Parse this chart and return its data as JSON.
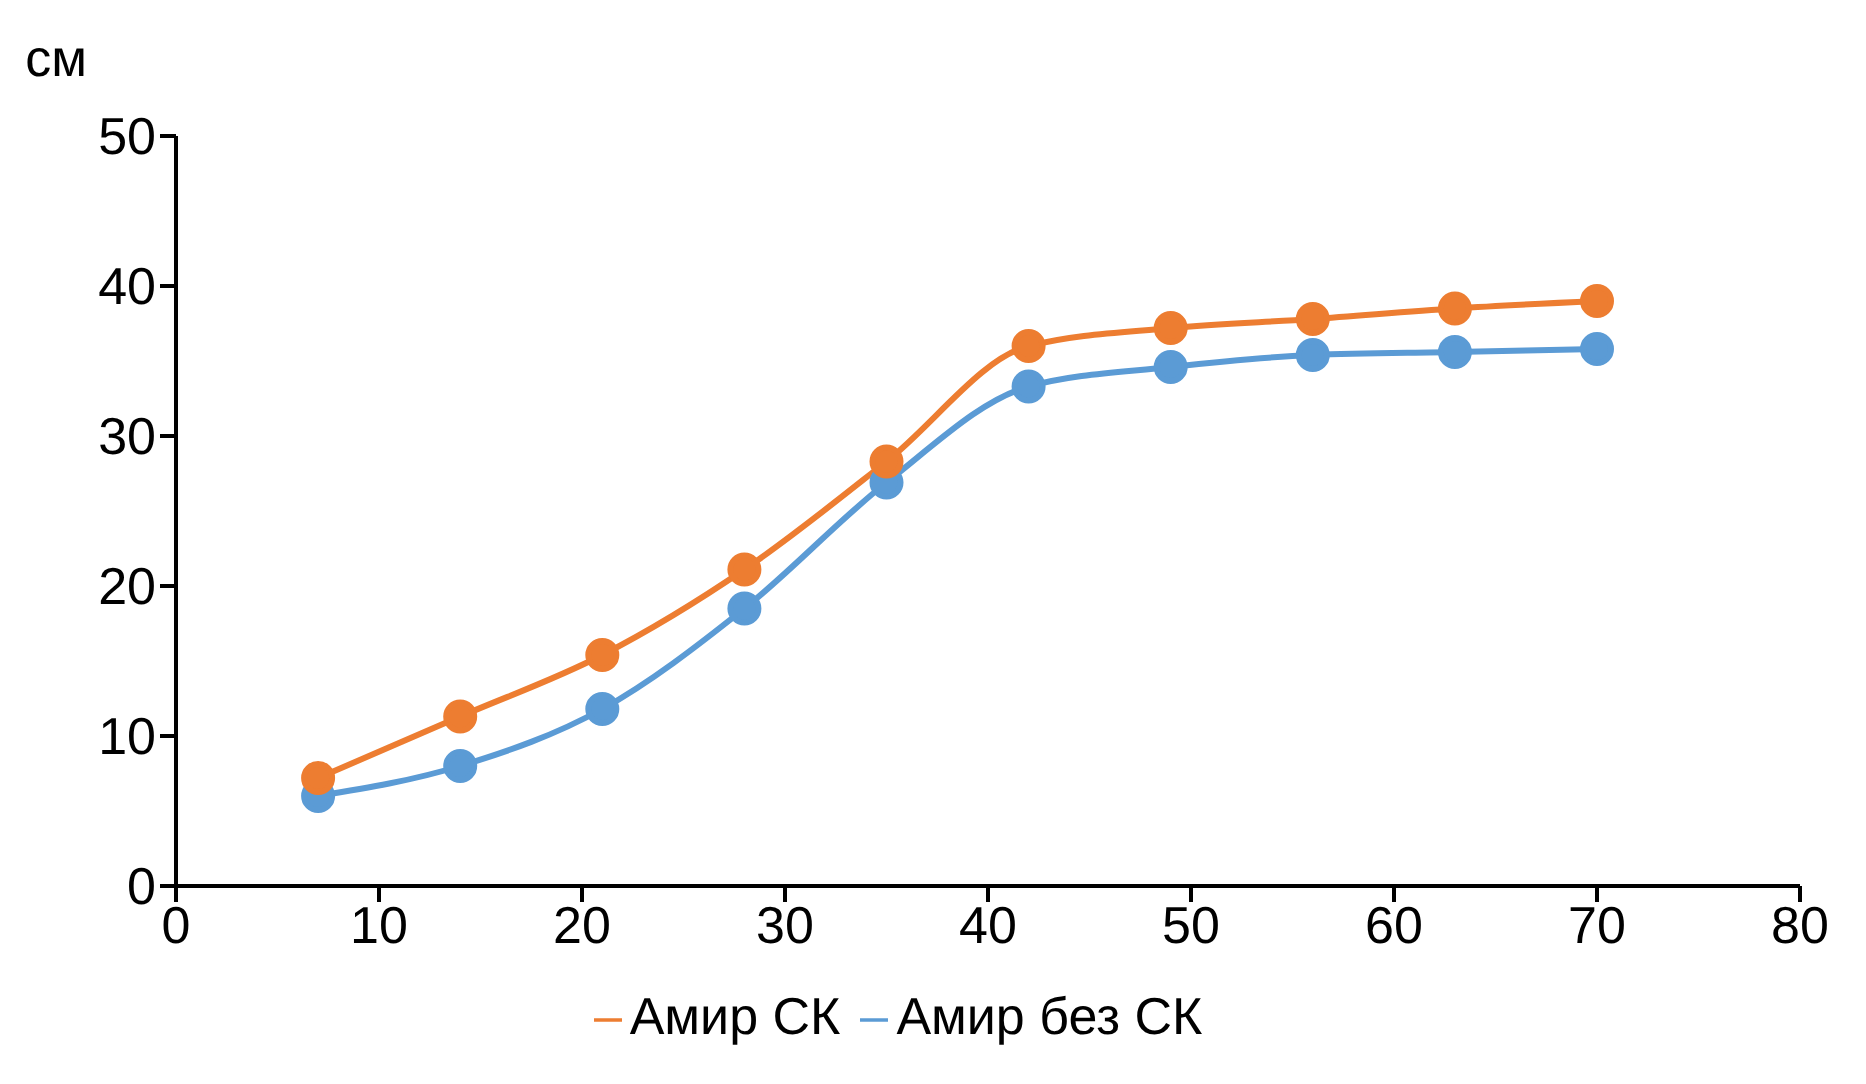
{
  "chart_data": {
    "type": "line",
    "ylabel": "см",
    "x": [
      7,
      14,
      21,
      28,
      35,
      42,
      49,
      56,
      63,
      70
    ],
    "series": [
      {
        "name": "Амир без СК",
        "color": "#5b9bd5",
        "values": [
          6.0,
          8.0,
          11.8,
          18.5,
          26.9,
          33.3,
          34.6,
          35.4,
          35.6,
          35.8
        ]
      },
      {
        "name": "Амир СК",
        "color": "#ed7d31",
        "values": [
          7.2,
          11.3,
          15.4,
          21.1,
          28.3,
          36.0,
          37.2,
          37.8,
          38.5,
          39.0
        ]
      }
    ],
    "xlim": [
      0,
      80
    ],
    "xticks": [
      0,
      10,
      20,
      30,
      40,
      50,
      60,
      70,
      80
    ],
    "ylim": [
      0,
      50
    ],
    "yticks": [
      0,
      10,
      20,
      30,
      40,
      50
    ],
    "grid": false,
    "legend": "bottom",
    "marker": "circle",
    "line_style": "solid"
  }
}
